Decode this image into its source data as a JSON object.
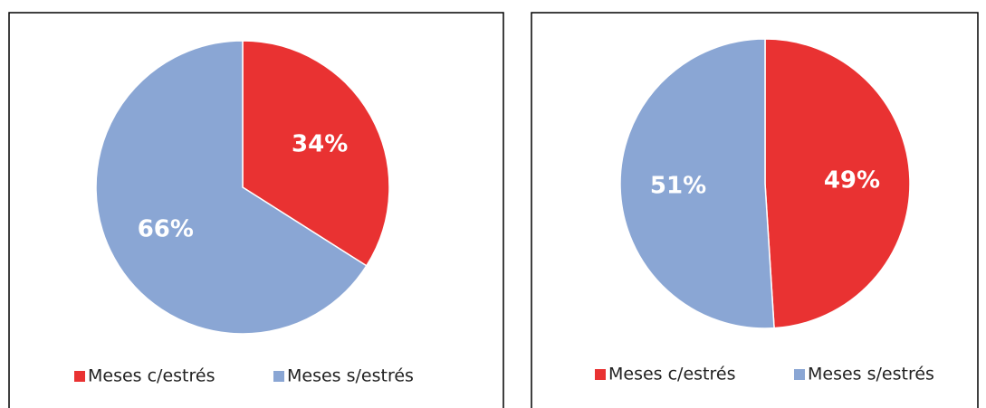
{
  "chart_data": [
    {
      "type": "pie",
      "categories": [
        "Meses c/estrés",
        "Meses s/estrés"
      ],
      "values": [
        34,
        66
      ],
      "value_labels": [
        "34%",
        "66%"
      ],
      "colors": [
        "#e93232",
        "#8aa6d4"
      ]
    },
    {
      "type": "pie",
      "categories": [
        "Meses c/estrés",
        "Meses s/estrés"
      ],
      "values": [
        49,
        51
      ],
      "value_labels": [
        "49%",
        "51%"
      ],
      "colors": [
        "#e93232",
        "#8aa6d4"
      ]
    }
  ]
}
